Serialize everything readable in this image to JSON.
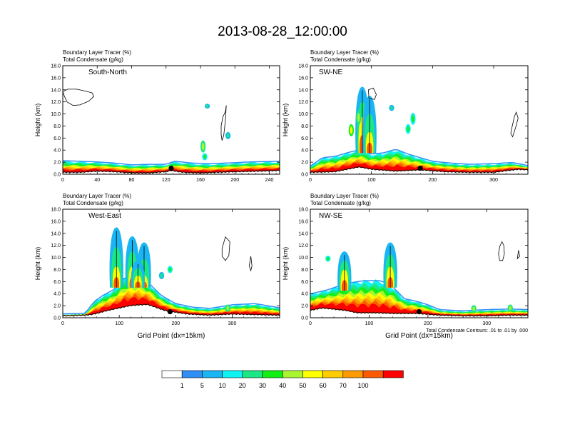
{
  "title": "2013-08-28_12:00:00",
  "footnote": "Total Condensate Contours: .01 to .01 by .000",
  "colorbar": {
    "labels": [
      "1",
      "5",
      "10",
      "20",
      "30",
      "40",
      "50",
      "60",
      "70",
      "100"
    ],
    "colors": [
      "#ffffff",
      "#2f8ff5",
      "#1ab5f2",
      "#10f3f3",
      "#1be784",
      "#11ef15",
      "#a8f530",
      "#ffff00",
      "#ffcd00",
      "#fd9a00",
      "#fc5a00",
      "#fd0000"
    ]
  },
  "chart_data": [
    {
      "type": "heatmap",
      "panel": "South-North",
      "label_line1": "Boundary Layer Tracer   (%)",
      "label_line2": "Total Condensate   (g/kg)",
      "ylabel": "Height (km)",
      "xlabel": "",
      "xlim": [
        0,
        252
      ],
      "ylim": [
        0,
        18
      ],
      "xticks": [
        "0",
        "40",
        "80",
        "120",
        "160",
        "200",
        "240"
      ],
      "xtick_values": [
        0,
        40,
        80,
        120,
        160,
        200,
        240
      ],
      "yticks": [
        "0.0",
        "2.0",
        "4.0",
        "6.0",
        "8.0",
        "10.0",
        "12.0",
        "14.0",
        "16.0",
        "18.0"
      ],
      "terrain": [
        [
          0,
          0.3
        ],
        [
          20,
          0.3
        ],
        [
          40,
          0.5
        ],
        [
          60,
          0.4
        ],
        [
          80,
          0.2
        ],
        [
          100,
          0.2
        ],
        [
          120,
          0.4
        ],
        [
          125,
          0.6
        ],
        [
          140,
          0.3
        ],
        [
          160,
          0.2
        ],
        [
          200,
          0.4
        ],
        [
          230,
          0.5
        ],
        [
          252,
          0.6
        ]
      ],
      "tracer_top": [
        [
          0,
          2.1
        ],
        [
          20,
          2.0
        ],
        [
          40,
          1.9
        ],
        [
          60,
          1.7
        ],
        [
          80,
          1.4
        ],
        [
          100,
          1.5
        ],
        [
          120,
          1.5
        ],
        [
          130,
          2.0
        ],
        [
          150,
          1.7
        ],
        [
          170,
          1.6
        ],
        [
          190,
          1.7
        ],
        [
          220,
          1.9
        ],
        [
          252,
          2.0
        ]
      ],
      "marker": [
        126,
        1.0
      ],
      "cloud_blobs": [
        [
          163,
          4.6,
          3,
          1.0
        ],
        [
          165,
          2.9,
          2,
          0.6
        ],
        [
          192,
          6.4,
          1,
          0.6
        ],
        [
          168,
          11.3,
          1,
          0.4
        ]
      ],
      "contours": [
        [
          [
            0,
            13.7
          ],
          [
            6,
            14.1
          ],
          [
            16,
            14.1
          ],
          [
            26,
            13.8
          ],
          [
            34,
            13.5
          ],
          [
            36,
            12.9
          ],
          [
            30,
            12.1
          ],
          [
            20,
            11.5
          ],
          [
            12,
            11.4
          ],
          [
            5,
            12.0
          ],
          [
            2,
            12.9
          ]
        ],
        [
          [
            186,
            9.5
          ],
          [
            189,
            10.4
          ],
          [
            190,
            11.4
          ],
          [
            189,
            9.0
          ],
          [
            187,
            6.4
          ],
          [
            185,
            5.6
          ],
          [
            184,
            6.6
          ],
          [
            184,
            8.0
          ]
        ]
      ]
    },
    {
      "type": "heatmap",
      "panel": "SW-NE",
      "label_line1": "Boundary Layer Tracer   (%)",
      "label_line2": "Total Condensate   (g/kg)",
      "ylabel": "Height (km)",
      "xlabel": "",
      "xlim": [
        0,
        356
      ],
      "ylim": [
        0,
        18
      ],
      "xticks": [
        "0",
        "100",
        "200",
        "300"
      ],
      "xtick_values": [
        0,
        100,
        200,
        300
      ],
      "yticks": [
        "0.0",
        "2.0",
        "4.0",
        "6.0",
        "8.0",
        "10.0",
        "12.0",
        "14.0",
        "16.0",
        "18.0"
      ],
      "terrain": [
        [
          0,
          0.3
        ],
        [
          40,
          0.4
        ],
        [
          60,
          0.8
        ],
        [
          80,
          1.2
        ],
        [
          100,
          0.8
        ],
        [
          140,
          0.5
        ],
        [
          180,
          0.7
        ],
        [
          220,
          0.4
        ],
        [
          260,
          0.3
        ],
        [
          300,
          0.3
        ],
        [
          340,
          0.8
        ],
        [
          356,
          0.7
        ]
      ],
      "tracer_top": [
        [
          0,
          1.2
        ],
        [
          20,
          2.6
        ],
        [
          40,
          2.8
        ],
        [
          60,
          3.4
        ],
        [
          80,
          3.9
        ],
        [
          100,
          3.2
        ],
        [
          120,
          3.4
        ],
        [
          140,
          4.0
        ],
        [
          160,
          3.2
        ],
        [
          180,
          2.6
        ],
        [
          200,
          2.0
        ],
        [
          230,
          1.7
        ],
        [
          260,
          1.5
        ],
        [
          300,
          1.6
        ],
        [
          330,
          1.8
        ],
        [
          356,
          1.3
        ]
      ],
      "marker": [
        180,
        1.0
      ],
      "plumes": [
        [
          85,
          3.5,
          9.5,
          14.5
        ],
        [
          97,
          3.5,
          7.0,
          13.0
        ]
      ],
      "cloud_blobs": [
        [
          67,
          7.3,
          4,
          1.0
        ],
        [
          79,
          9.4,
          3,
          1.2
        ],
        [
          168,
          9.2,
          2,
          1.0
        ],
        [
          160,
          7.5,
          2,
          0.8
        ],
        [
          133,
          11.0,
          1,
          0.5
        ]
      ],
      "contours": [
        [
          [
            95,
            14.0
          ],
          [
            103,
            14.3
          ],
          [
            108,
            13.2
          ],
          [
            105,
            12.4
          ],
          [
            96,
            12.6
          ]
        ],
        [
          [
            330,
            7.8
          ],
          [
            334,
            9.6
          ],
          [
            337,
            10.3
          ],
          [
            340,
            9.3
          ],
          [
            336,
            7.8
          ],
          [
            331,
            6.2
          ],
          [
            328,
            6.8
          ]
        ]
      ]
    },
    {
      "type": "heatmap",
      "panel": "West-East",
      "label_line1": "Boundary Layer Tracer   (%)",
      "label_line2": "Total Condensate   (g/kg)",
      "ylabel": "Height (km)",
      "xlabel": "Grid Point (dx=15km)",
      "xlim": [
        0,
        384
      ],
      "ylim": [
        0,
        18
      ],
      "xticks": [
        "0",
        "100",
        "200",
        "300"
      ],
      "xtick_values": [
        0,
        100,
        200,
        300
      ],
      "yticks": [
        "0.0",
        "2.0",
        "4.0",
        "6.0",
        "8.0",
        "10.0",
        "12.0",
        "14.0",
        "16.0",
        "18.0"
      ],
      "terrain": [
        [
          0,
          0.3
        ],
        [
          40,
          0.4
        ],
        [
          50,
          0.5
        ],
        [
          60,
          0.7
        ],
        [
          80,
          1.2
        ],
        [
          120,
          2.0
        ],
        [
          150,
          2.2
        ],
        [
          180,
          1.2
        ],
        [
          220,
          0.6
        ],
        [
          260,
          0.4
        ],
        [
          300,
          0.6
        ],
        [
          340,
          0.5
        ],
        [
          384,
          0.4
        ]
      ],
      "tracer_top": [
        [
          0,
          0.5
        ],
        [
          40,
          0.6
        ],
        [
          55,
          2.5
        ],
        [
          70,
          3.5
        ],
        [
          90,
          4.5
        ],
        [
          110,
          6.5
        ],
        [
          130,
          6.8
        ],
        [
          150,
          5.8
        ],
        [
          175,
          3.5
        ],
        [
          200,
          2.2
        ],
        [
          230,
          1.6
        ],
        [
          260,
          1.4
        ],
        [
          300,
          2.0
        ],
        [
          340,
          2.2
        ],
        [
          384,
          1.5
        ]
      ],
      "marker": [
        190,
        1.0
      ],
      "plumes": [
        [
          95,
          5.0,
          8.5,
          15.0
        ],
        [
          123,
          5.0,
          8.5,
          13.5
        ],
        [
          144,
          5.0,
          7.0,
          12.5
        ],
        [
          133,
          5.0,
          7.0,
          9.5
        ]
      ],
      "cloud_blobs": [
        [
          175,
          7.0,
          1,
          0.6
        ],
        [
          190,
          8.0,
          2,
          0.6
        ],
        [
          292,
          1.6,
          3,
          0.6
        ]
      ],
      "contours": [
        [
          [
            282,
            11.5
          ],
          [
            288,
            13.4
          ],
          [
            296,
            12.6
          ],
          [
            294,
            10.3
          ],
          [
            288,
            9.5
          ],
          [
            282,
            10.2
          ]
        ],
        [
          [
            330,
            8.6
          ],
          [
            333,
            10.2
          ],
          [
            335,
            8.6
          ],
          [
            333,
            7.8
          ]
        ]
      ]
    },
    {
      "type": "heatmap",
      "panel": "NW-SE",
      "label_line1": "Boundary Layer Tracer   (%)",
      "label_line2": "Total Condensate   (g/kg)",
      "ylabel": "Height (km)",
      "xlabel": "Grid Point (dx=15km)",
      "xlim": [
        0,
        370
      ],
      "ylim": [
        0,
        18
      ],
      "xticks": [
        "0",
        "100",
        "200",
        "300"
      ],
      "xtick_values": [
        0,
        100,
        200,
        300
      ],
      "yticks": [
        "0.0",
        "2.0",
        "4.0",
        "6.0",
        "8.0",
        "10.0",
        "12.0",
        "14.0",
        "16.0",
        "18.0"
      ],
      "terrain": [
        [
          0,
          1.2
        ],
        [
          20,
          1.6
        ],
        [
          40,
          1.4
        ],
        [
          60,
          1.2
        ],
        [
          80,
          0.8
        ],
        [
          110,
          0.8
        ],
        [
          140,
          0.7
        ],
        [
          180,
          0.7
        ],
        [
          220,
          0.4
        ],
        [
          260,
          0.3
        ],
        [
          300,
          0.3
        ],
        [
          340,
          0.4
        ],
        [
          370,
          0.4
        ]
      ],
      "tracer_top": [
        [
          0,
          3.8
        ],
        [
          30,
          4.5
        ],
        [
          60,
          5.5
        ],
        [
          90,
          6.0
        ],
        [
          120,
          6.0
        ],
        [
          140,
          5.0
        ],
        [
          160,
          3.0
        ],
        [
          180,
          2.6
        ],
        [
          200,
          2.0
        ],
        [
          220,
          1.2
        ],
        [
          260,
          1.0
        ],
        [
          300,
          1.2
        ],
        [
          340,
          1.3
        ],
        [
          370,
          1.2
        ]
      ],
      "marker": [
        185,
        1.0
      ],
      "plumes": [
        [
          136,
          5.0,
          8.5,
          12.5
        ],
        [
          58,
          4.5,
          8.0,
          11.0
        ]
      ],
      "cloud_blobs": [
        [
          30,
          9.8,
          2,
          0.5
        ],
        [
          278,
          1.5,
          3,
          0.6
        ],
        [
          340,
          1.6,
          3,
          0.6
        ]
      ],
      "contours": [
        [
          [
            322,
            11.8
          ],
          [
            326,
            12.6
          ],
          [
            329,
            12.0
          ],
          [
            330,
            10.6
          ],
          [
            327,
            9.5
          ],
          [
            322,
            9.5
          ],
          [
            320,
            10.6
          ]
        ],
        [
          [
            352,
            9.8
          ],
          [
            354,
            11.2
          ],
          [
            356,
            10.2
          ]
        ]
      ]
    }
  ]
}
